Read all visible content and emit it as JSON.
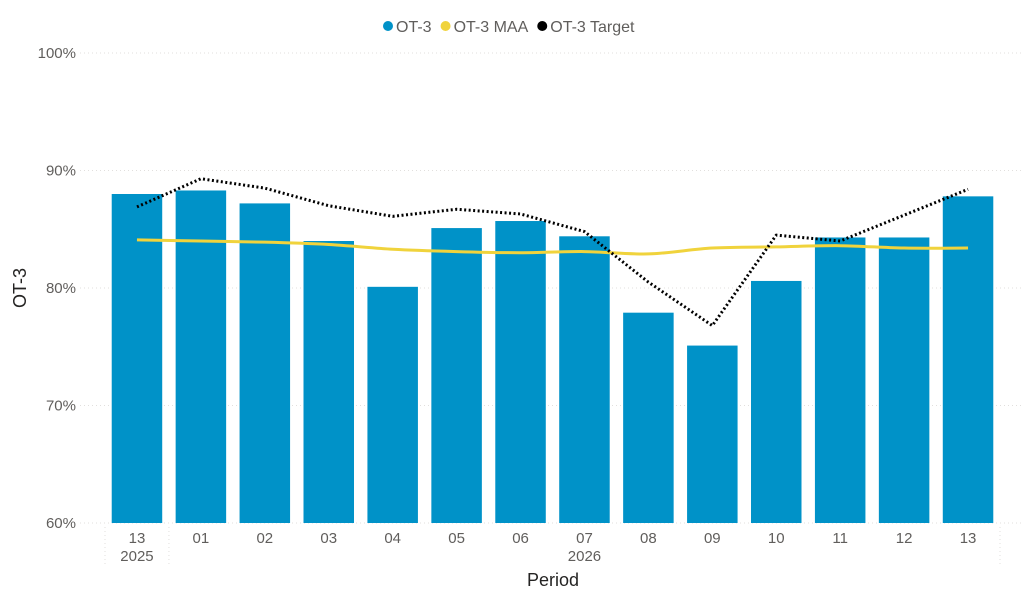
{
  "chart_data": {
    "type": "bar",
    "categories": [
      "13",
      "01",
      "02",
      "03",
      "04",
      "05",
      "06",
      "07",
      "08",
      "09",
      "10",
      "11",
      "12",
      "13"
    ],
    "year_groups": [
      {
        "label": "2025",
        "start": 0,
        "end": 0
      },
      {
        "label": "2026",
        "start": 1,
        "end": 13
      }
    ],
    "xlabel": "Period",
    "ylabel": "OT-3",
    "ylim": [
      0.6,
      1.0
    ],
    "yticks": [
      {
        "value": 0.6,
        "label": "60%"
      },
      {
        "value": 0.7,
        "label": "70%"
      },
      {
        "value": 0.8,
        "label": "80%"
      },
      {
        "value": 0.9,
        "label": "90%"
      },
      {
        "value": 1.0,
        "label": "100%"
      }
    ],
    "grid": true,
    "legend_position": "top-center",
    "series": [
      {
        "name": "OT-3",
        "kind": "bar",
        "color": "#0092c8",
        "values": [
          0.88,
          0.883,
          0.872,
          0.84,
          0.801,
          0.851,
          0.857,
          0.844,
          0.779,
          0.751,
          0.806,
          0.843,
          0.843,
          0.878
        ]
      },
      {
        "name": "OT-3 MAA",
        "kind": "line",
        "color": "#f0d33c",
        "values": [
          0.841,
          0.84,
          0.839,
          0.837,
          0.833,
          0.831,
          0.83,
          0.831,
          0.829,
          0.834,
          0.835,
          0.836,
          0.834,
          0.834
        ]
      },
      {
        "name": "OT-3 Target",
        "kind": "dotted-line",
        "color": "#000000",
        "values": [
          0.869,
          0.893,
          0.885,
          0.87,
          0.861,
          0.867,
          0.863,
          0.848,
          0.805,
          0.768,
          0.845,
          0.84,
          0.862,
          0.884
        ]
      }
    ]
  }
}
